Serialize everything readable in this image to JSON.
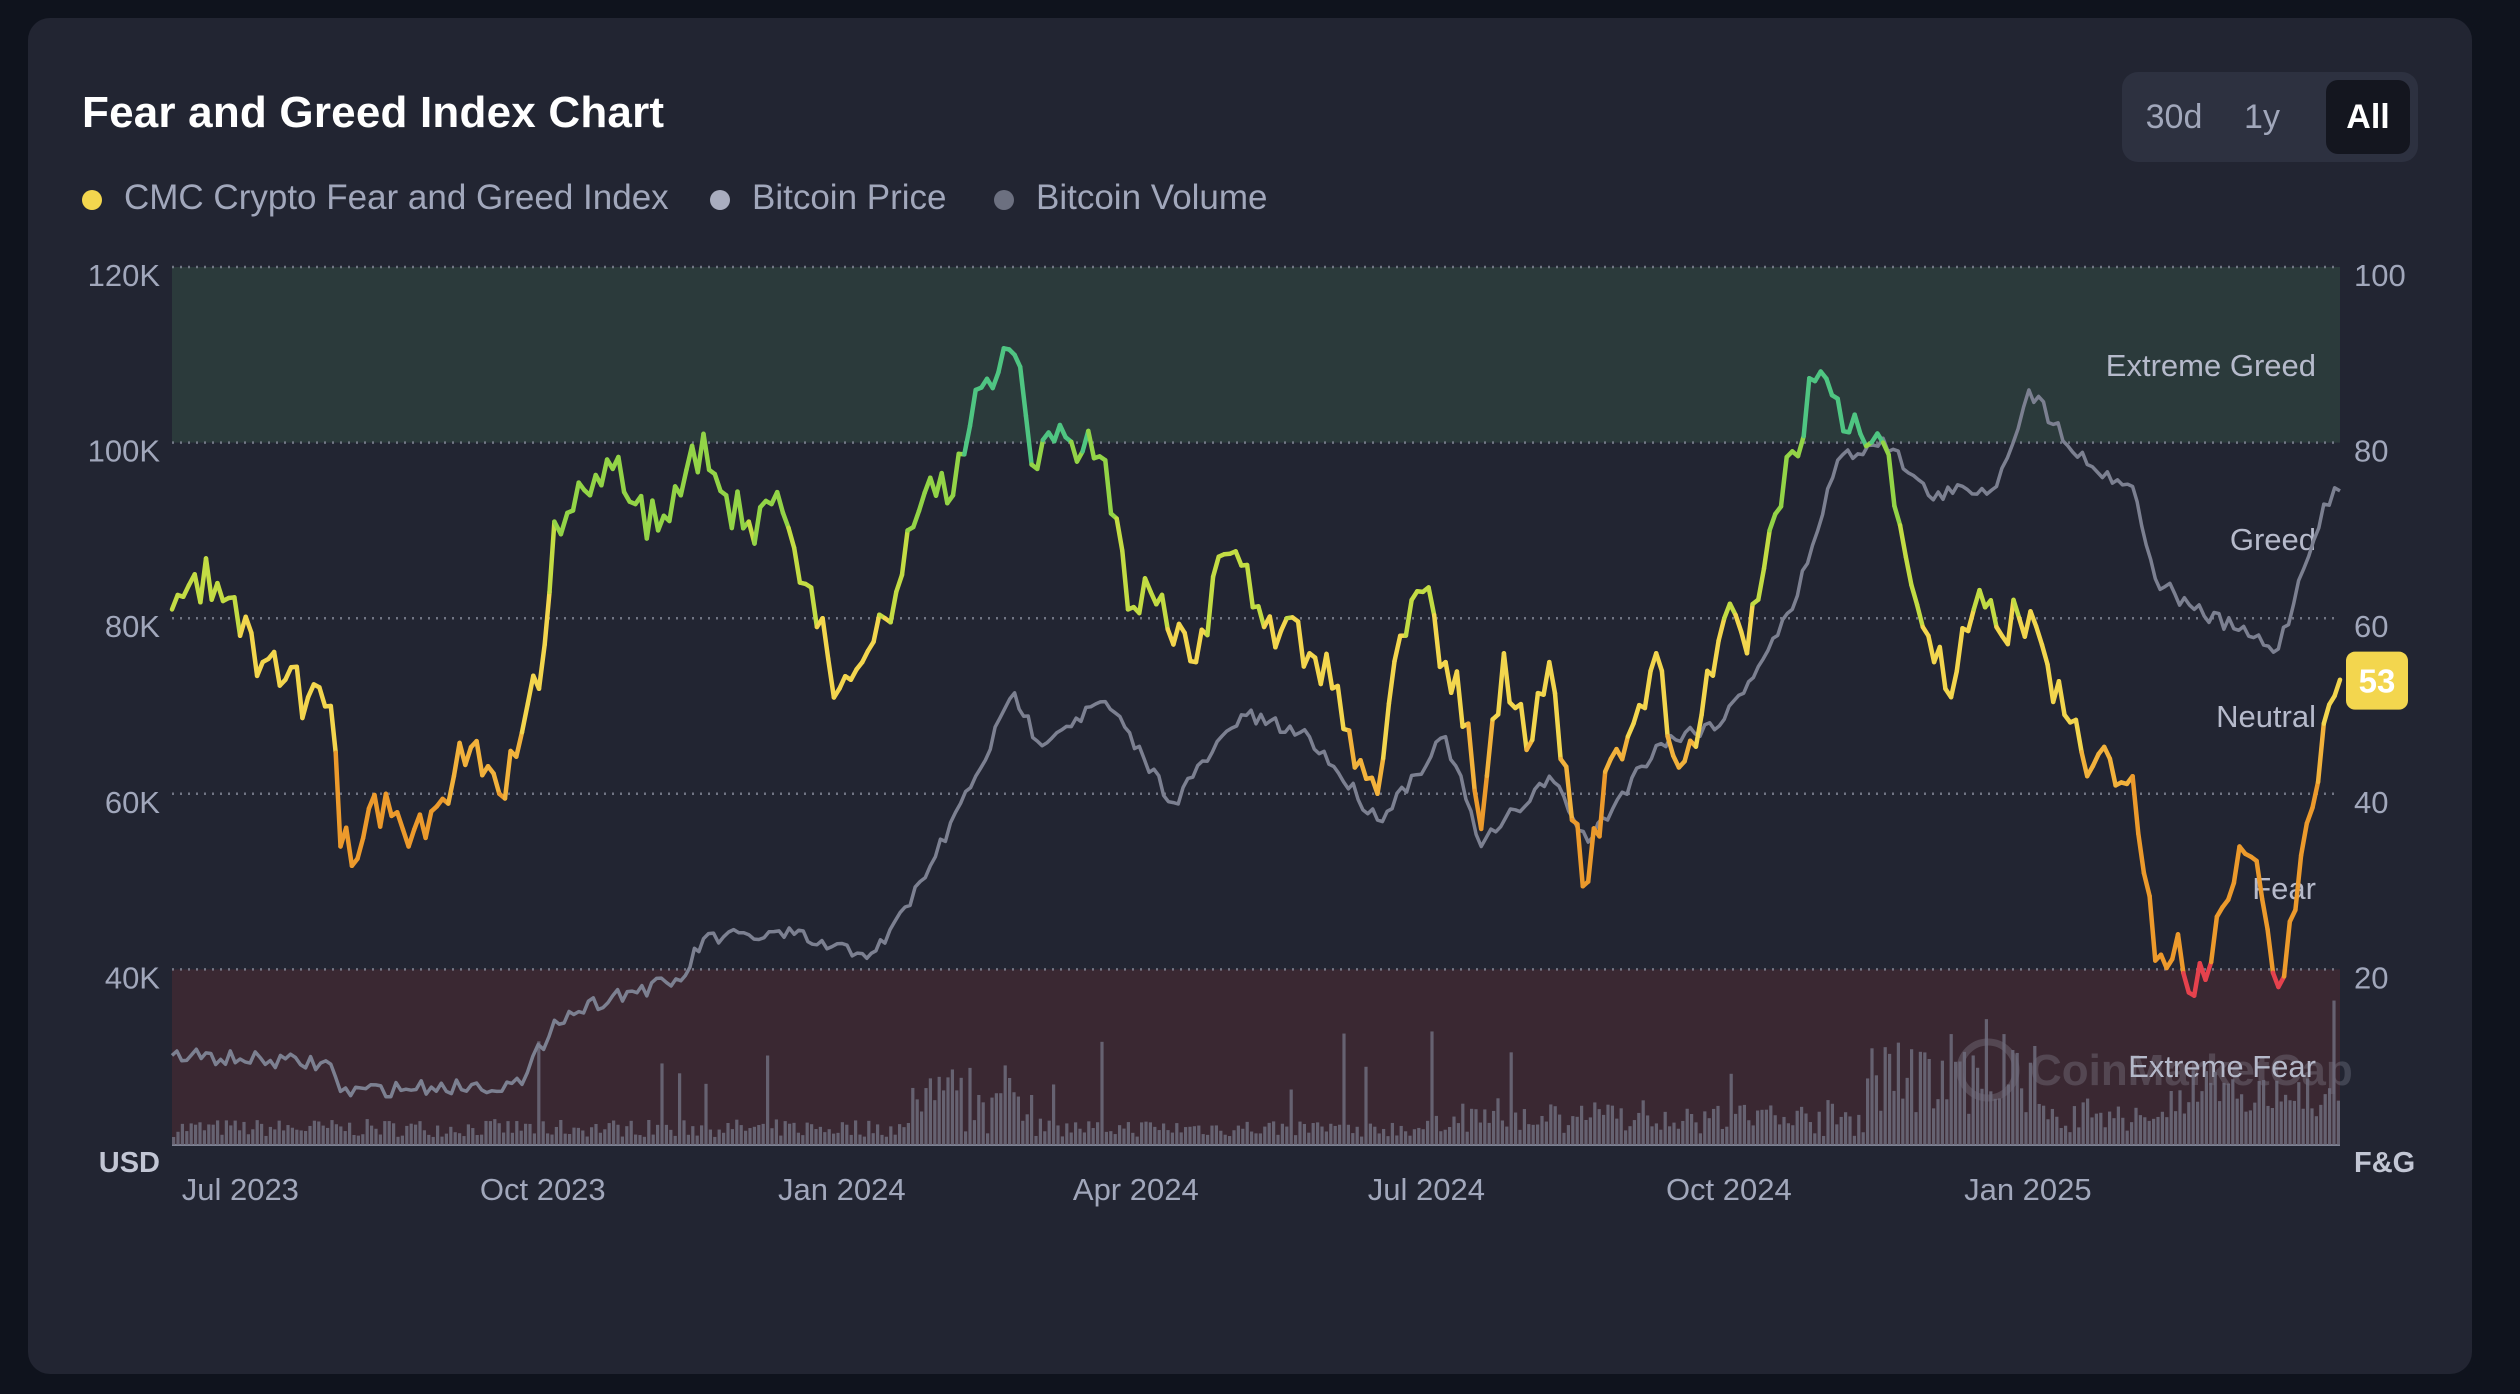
{
  "title": "Fear and Greed Index Chart",
  "range_tabs": [
    {
      "label": "30d",
      "active": false
    },
    {
      "label": "1y",
      "active": false
    },
    {
      "label": "All",
      "active": true
    }
  ],
  "legend": [
    {
      "label": "CMC Crypto Fear and Greed Index",
      "color": "#f3d64e"
    },
    {
      "label": "Bitcoin Price",
      "color": "#a9adbf"
    },
    {
      "label": "Bitcoin Volume",
      "color": "#6c7080"
    }
  ],
  "current_value": "53",
  "watermark": "CoinMarketCap",
  "chart_data": {
    "type": "line",
    "x_ticks": [
      "Jul 2023",
      "Oct 2023",
      "Jan 2024",
      "Apr 2024",
      "Jul 2024",
      "Oct 2024",
      "Jan 2025"
    ],
    "left_axis": {
      "unit_label": "USD",
      "ticks": [
        "120K",
        "100K",
        "80K",
        "60K",
        "40K"
      ],
      "ylim": [
        20000,
        120000
      ]
    },
    "right_axis": {
      "unit_label": "F&G",
      "ticks": [
        "100",
        "80",
        "60",
        "40",
        "20"
      ],
      "ylim": [
        0,
        100
      ]
    },
    "zones": [
      {
        "label": "Extreme Greed",
        "range": [
          80,
          100
        ],
        "color": "#2b3a3b"
      },
      {
        "label": "Greed",
        "range": [
          60,
          80
        ],
        "color": ""
      },
      {
        "label": "Neutral",
        "range": [
          40,
          60
        ],
        "color": ""
      },
      {
        "label": "Fear",
        "range": [
          20,
          40
        ],
        "color": ""
      },
      {
        "label": "Extreme Fear",
        "range": [
          0,
          20
        ],
        "color": "#3a2832"
      }
    ],
    "fear_greed_series": [
      [
        "2023-06-28",
        61
      ],
      [
        "2023-07-05",
        65
      ],
      [
        "2023-07-12",
        64
      ],
      [
        "2023-07-19",
        58
      ],
      [
        "2023-07-26",
        55
      ],
      [
        "2023-08-02",
        53
      ],
      [
        "2023-08-09",
        51
      ],
      [
        "2023-08-16",
        50
      ],
      [
        "2023-08-19",
        34
      ],
      [
        "2023-08-26",
        35
      ],
      [
        "2023-09-02",
        40
      ],
      [
        "2023-09-09",
        34
      ],
      [
        "2023-09-16",
        38
      ],
      [
        "2023-09-23",
        42
      ],
      [
        "2023-09-30",
        46
      ],
      [
        "2023-10-07",
        40
      ],
      [
        "2023-10-14",
        47
      ],
      [
        "2023-10-21",
        57
      ],
      [
        "2023-10-24",
        71
      ],
      [
        "2023-10-28",
        72
      ],
      [
        "2023-11-04",
        74
      ],
      [
        "2023-11-11",
        77
      ],
      [
        "2023-11-18",
        73
      ],
      [
        "2023-11-25",
        70
      ],
      [
        "2023-12-02",
        74
      ],
      [
        "2023-12-09",
        81
      ],
      [
        "2023-12-16",
        74
      ],
      [
        "2023-12-23",
        71
      ],
      [
        "2023-12-30",
        73
      ],
      [
        "2024-01-06",
        68
      ],
      [
        "2024-01-13",
        59
      ],
      [
        "2024-01-20",
        52
      ],
      [
        "2024-01-27",
        55
      ],
      [
        "2024-02-03",
        60
      ],
      [
        "2024-02-10",
        70
      ],
      [
        "2024-02-17",
        76
      ],
      [
        "2024-02-24",
        74
      ],
      [
        "2024-03-02",
        86
      ],
      [
        "2024-03-09",
        88
      ],
      [
        "2024-03-14",
        90
      ],
      [
        "2024-03-21",
        77
      ],
      [
        "2024-03-28",
        82
      ],
      [
        "2024-04-04",
        79
      ],
      [
        "2024-04-11",
        78
      ],
      [
        "2024-04-18",
        61
      ],
      [
        "2024-04-25",
        63
      ],
      [
        "2024-05-02",
        57
      ],
      [
        "2024-05-09",
        55
      ],
      [
        "2024-05-16",
        67
      ],
      [
        "2024-05-23",
        66
      ],
      [
        "2024-05-30",
        59
      ],
      [
        "2024-06-06",
        60
      ],
      [
        "2024-06-13",
        56
      ],
      [
        "2024-06-20",
        52
      ],
      [
        "2024-06-27",
        43
      ],
      [
        "2024-07-04",
        40
      ],
      [
        "2024-07-11",
        58
      ],
      [
        "2024-07-18",
        63
      ],
      [
        "2024-07-25",
        55
      ],
      [
        "2024-08-01",
        48
      ],
      [
        "2024-08-05",
        36
      ],
      [
        "2024-08-12",
        56
      ],
      [
        "2024-08-19",
        45
      ],
      [
        "2024-08-26",
        55
      ],
      [
        "2024-09-02",
        37
      ],
      [
        "2024-09-07",
        30
      ],
      [
        "2024-09-14",
        44
      ],
      [
        "2024-09-21",
        48
      ],
      [
        "2024-09-28",
        56
      ],
      [
        "2024-10-05",
        43
      ],
      [
        "2024-10-12",
        49
      ],
      [
        "2024-10-19",
        60
      ],
      [
        "2024-10-26",
        56
      ],
      [
        "2024-11-02",
        70
      ],
      [
        "2024-11-09",
        79
      ],
      [
        "2024-11-16",
        87
      ],
      [
        "2024-11-23",
        85
      ],
      [
        "2024-11-30",
        81
      ],
      [
        "2024-12-07",
        80
      ],
      [
        "2024-12-14",
        67
      ],
      [
        "2024-12-21",
        58
      ],
      [
        "2024-12-28",
        51
      ],
      [
        "2025-01-04",
        61
      ],
      [
        "2025-01-11",
        59
      ],
      [
        "2025-01-18",
        60
      ],
      [
        "2025-01-25",
        57
      ],
      [
        "2025-02-01",
        49
      ],
      [
        "2025-02-08",
        42
      ],
      [
        "2025-02-15",
        44
      ],
      [
        "2025-02-22",
        42
      ],
      [
        "2025-03-01",
        21
      ],
      [
        "2025-03-08",
        24
      ],
      [
        "2025-03-13",
        17
      ],
      [
        "2025-03-20",
        26
      ],
      [
        "2025-03-27",
        34
      ],
      [
        "2025-04-03",
        28
      ],
      [
        "2025-04-08",
        18
      ],
      [
        "2025-04-15",
        33
      ],
      [
        "2025-04-22",
        48
      ],
      [
        "2025-04-27",
        53
      ]
    ],
    "bitcoin_price_series": [
      [
        "2023-06-28",
        30200
      ],
      [
        "2023-07-19",
        29800
      ],
      [
        "2023-08-16",
        29200
      ],
      [
        "2023-08-19",
        26100
      ],
      [
        "2023-09-16",
        26600
      ],
      [
        "2023-10-14",
        26900
      ],
      [
        "2023-10-24",
        34200
      ],
      [
        "2023-11-11",
        37000
      ],
      [
        "2023-12-02",
        38700
      ],
      [
        "2023-12-09",
        43500
      ],
      [
        "2024-01-06",
        44000
      ],
      [
        "2024-01-13",
        42800
      ],
      [
        "2024-01-27",
        41800
      ],
      [
        "2024-02-03",
        43000
      ],
      [
        "2024-02-17",
        51800
      ],
      [
        "2024-03-02",
        62000
      ],
      [
        "2024-03-14",
        71500
      ],
      [
        "2024-03-21",
        66000
      ],
      [
        "2024-04-11",
        70500
      ],
      [
        "2024-05-02",
        59000
      ],
      [
        "2024-05-23",
        69000
      ],
      [
        "2024-06-13",
        66500
      ],
      [
        "2024-07-04",
        57000
      ],
      [
        "2024-07-25",
        66500
      ],
      [
        "2024-08-05",
        54000
      ],
      [
        "2024-08-26",
        62000
      ],
      [
        "2024-09-07",
        54500
      ],
      [
        "2024-09-28",
        65500
      ],
      [
        "2024-10-19",
        68500
      ],
      [
        "2024-11-09",
        81000
      ],
      [
        "2024-11-23",
        98000
      ],
      [
        "2024-12-07",
        100500
      ],
      [
        "2024-12-21",
        94000
      ],
      [
        "2025-01-11",
        95000
      ],
      [
        "2025-01-21",
        106000
      ],
      [
        "2025-02-08",
        97500
      ],
      [
        "2025-02-22",
        95000
      ],
      [
        "2025-03-01",
        84500
      ],
      [
        "2025-03-13",
        81000
      ],
      [
        "2025-04-08",
        76500
      ],
      [
        "2025-04-22",
        93000
      ],
      [
        "2025-04-27",
        94500
      ]
    ],
    "bitcoin_volume": {
      "type": "bar",
      "description_values": "daily volume bars along bottom, scaled to left axis"
    }
  }
}
